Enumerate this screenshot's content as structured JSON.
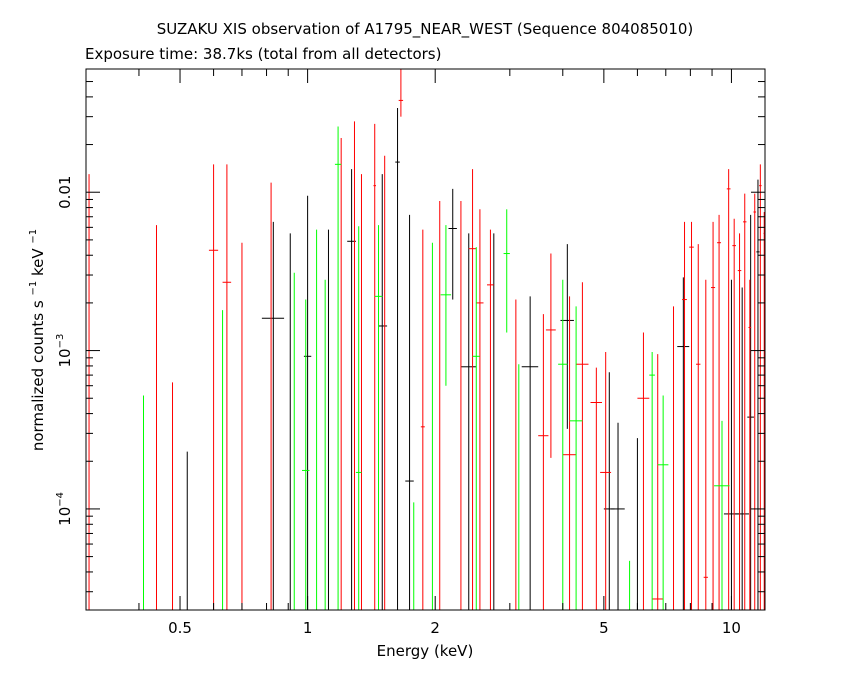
{
  "chart_data": {
    "type": "scatter",
    "title": "SUZAKU XIS observation of A1795_NEAR_WEST (Sequence 804085010)",
    "subtitle": "Exposure time: 38.7ks (total from all detectors)",
    "xlabel": "Energy (keV)",
    "ylabel": "normalized counts s",
    "ylabel_sup1": "−1",
    "ylabel_mid": " keV",
    "ylabel_sup2": "−1",
    "xscale": "log",
    "yscale": "log",
    "xlim": [
      0.3,
      12.0
    ],
    "ylim": [
      2.3e-05,
      0.06
    ],
    "x_ticks": [
      {
        "value": 0.5,
        "label": "0.5"
      },
      {
        "value": 1,
        "label": "1"
      },
      {
        "value": 2,
        "label": "2"
      },
      {
        "value": 5,
        "label": "5"
      },
      {
        "value": 10,
        "label": "10"
      }
    ],
    "y_ticks": [
      {
        "value": 0.0001,
        "base": "10",
        "exp": "−4"
      },
      {
        "value": 0.001,
        "base": "10",
        "exp": "−3"
      },
      {
        "value": 0.01,
        "label": "0.01"
      }
    ],
    "grid": false,
    "series": [
      {
        "color": "#000000",
        "points": [
          {
            "x": 0.52,
            "xlo": 0.518,
            "xhi": 0.522,
            "y": 2.3e-05,
            "ylo": 2.3e-05,
            "yhi": 0.00023
          },
          {
            "x": 0.83,
            "xlo": 0.78,
            "xhi": 0.88,
            "y": 0.0016,
            "ylo": 2.3e-05,
            "yhi": 0.0065
          },
          {
            "x": 0.91,
            "xlo": 0.908,
            "xhi": 0.912,
            "y": 2.3e-05,
            "ylo": 2.3e-05,
            "yhi": 0.0055
          },
          {
            "x": 1.0,
            "xlo": 0.98,
            "xhi": 1.02,
            "y": 0.00092,
            "ylo": 2.3e-05,
            "yhi": 0.0095
          },
          {
            "x": 1.12,
            "xlo": 1.118,
            "xhi": 1.122,
            "y": 2.3e-05,
            "ylo": 2.3e-05,
            "yhi": 0.0058
          },
          {
            "x": 1.27,
            "xlo": 1.24,
            "xhi": 1.3,
            "y": 0.0049,
            "ylo": 2.3e-05,
            "yhi": 0.014
          },
          {
            "x": 1.5,
            "xlo": 1.47,
            "xhi": 1.54,
            "y": 0.00143,
            "ylo": 2.3e-05,
            "yhi": 0.013
          },
          {
            "x": 1.63,
            "xlo": 1.61,
            "xhi": 1.65,
            "y": 0.0155,
            "ylo": 2.3e-05,
            "yhi": 0.034
          },
          {
            "x": 1.74,
            "xlo": 1.7,
            "xhi": 1.78,
            "y": 0.00015,
            "ylo": 2.3e-05,
            "yhi": 0.0072
          },
          {
            "x": 2.2,
            "xlo": 2.15,
            "xhi": 2.25,
            "y": 0.0059,
            "ylo": 0.0021,
            "yhi": 0.0105
          },
          {
            "x": 2.4,
            "xlo": 2.3,
            "xhi": 2.5,
            "y": 0.00079,
            "ylo": 2.3e-05,
            "yhi": 0.0055
          },
          {
            "x": 2.75,
            "xlo": 2.72,
            "xhi": 2.78,
            "y": 2.3e-05,
            "ylo": 2.3e-05,
            "yhi": 0.0055
          },
          {
            "x": 3.35,
            "xlo": 3.2,
            "xhi": 3.5,
            "y": 0.00079,
            "ylo": 2.3e-05,
            "yhi": 0.0022
          },
          {
            "x": 4.1,
            "xlo": 3.95,
            "xhi": 4.25,
            "y": 0.00155,
            "ylo": 0.00032,
            "yhi": 0.0047
          },
          {
            "x": 5.15,
            "xlo": 5.0,
            "xhi": 5.3,
            "y": 0.0001,
            "ylo": 2.3e-05,
            "yhi": 0.00073
          },
          {
            "x": 5.4,
            "xlo": 5.2,
            "xhi": 5.6,
            "y": 0.0001,
            "ylo": 2.3e-05,
            "yhi": 0.00035
          },
          {
            "x": 6.0,
            "xlo": 5.98,
            "xhi": 6.02,
            "y": 2.3e-05,
            "ylo": 2.3e-05,
            "yhi": 0.00028
          },
          {
            "x": 7.7,
            "xlo": 7.45,
            "xhi": 7.95,
            "y": 0.00106,
            "ylo": 2.3e-05,
            "yhi": 0.0029
          },
          {
            "x": 10.0,
            "xlo": 9.6,
            "xhi": 10.4,
            "y": 9.3e-05,
            "ylo": 2.3e-05,
            "yhi": 0.0028
          },
          {
            "x": 10.6,
            "xlo": 10.2,
            "xhi": 11.0,
            "y": 9.3e-05,
            "ylo": 2.3e-05,
            "yhi": 0.0025
          },
          {
            "x": 11.1,
            "xlo": 10.9,
            "xhi": 11.3,
            "y": 0.00038,
            "ylo": 2.3e-05,
            "yhi": 0.0072
          },
          {
            "x": 11.55,
            "xlo": 11.45,
            "xhi": 11.65,
            "y": 0.0042,
            "ylo": 2.3e-05,
            "yhi": 0.012
          }
        ]
      },
      {
        "color": "#ff0000",
        "points": [
          {
            "x": 0.305,
            "xlo": 0.304,
            "xhi": 0.306,
            "y": 2.3e-05,
            "ylo": 2.3e-05,
            "yhi": 0.013
          },
          {
            "x": 0.44,
            "xlo": 0.438,
            "xhi": 0.442,
            "y": 2.3e-05,
            "ylo": 2.3e-05,
            "yhi": 0.0062
          },
          {
            "x": 0.48,
            "xlo": 0.478,
            "xhi": 0.482,
            "y": 2.3e-05,
            "ylo": 2.3e-05,
            "yhi": 0.00063
          },
          {
            "x": 0.6,
            "xlo": 0.585,
            "xhi": 0.615,
            "y": 0.0043,
            "ylo": 2.3e-05,
            "yhi": 0.015
          },
          {
            "x": 0.645,
            "xlo": 0.63,
            "xhi": 0.66,
            "y": 0.0027,
            "ylo": 2.3e-05,
            "yhi": 0.015
          },
          {
            "x": 0.7,
            "xlo": 0.698,
            "xhi": 0.702,
            "y": 2.3e-05,
            "ylo": 2.3e-05,
            "yhi": 0.0048
          },
          {
            "x": 0.82,
            "xlo": 0.818,
            "xhi": 0.822,
            "y": 2.3e-05,
            "ylo": 2.3e-05,
            "yhi": 0.0115
          },
          {
            "x": 1.2,
            "xlo": 1.198,
            "xhi": 1.202,
            "y": 2.3e-05,
            "ylo": 2.3e-05,
            "yhi": 0.022
          },
          {
            "x": 1.29,
            "xlo": 1.288,
            "xhi": 1.292,
            "y": 2.3e-05,
            "ylo": 2.3e-05,
            "yhi": 0.028
          },
          {
            "x": 1.34,
            "xlo": 1.338,
            "xhi": 1.342,
            "y": 2.3e-05,
            "ylo": 2.3e-05,
            "yhi": 0.013
          },
          {
            "x": 1.44,
            "xlo": 1.43,
            "xhi": 1.45,
            "y": 0.011,
            "ylo": 2.3e-05,
            "yhi": 0.027
          },
          {
            "x": 1.52,
            "xlo": 1.518,
            "xhi": 1.522,
            "y": 2.3e-05,
            "ylo": 2.3e-05,
            "yhi": 0.017
          },
          {
            "x": 1.66,
            "xlo": 1.64,
            "xhi": 1.68,
            "y": 0.038,
            "ylo": 0.03,
            "yhi": 0.06
          },
          {
            "x": 1.87,
            "xlo": 1.85,
            "xhi": 1.89,
            "y": 0.00033,
            "ylo": 2.3e-05,
            "yhi": 0.0058
          },
          {
            "x": 2.05,
            "xlo": 2.048,
            "xhi": 2.052,
            "y": 2.3e-05,
            "ylo": 2.3e-05,
            "yhi": 0.0088
          },
          {
            "x": 2.3,
            "xlo": 2.298,
            "xhi": 2.302,
            "y": 2.3e-05,
            "ylo": 2.3e-05,
            "yhi": 0.0088
          },
          {
            "x": 2.45,
            "xlo": 2.4,
            "xhi": 2.5,
            "y": 0.0044,
            "ylo": 2.3e-05,
            "yhi": 0.014
          },
          {
            "x": 2.55,
            "xlo": 2.5,
            "xhi": 2.6,
            "y": 0.002,
            "ylo": 2.3e-05,
            "yhi": 0.0078
          },
          {
            "x": 2.7,
            "xlo": 2.65,
            "xhi": 2.75,
            "y": 0.0026,
            "ylo": 2.3e-05,
            "yhi": 0.0058
          },
          {
            "x": 3.1,
            "xlo": 3.098,
            "xhi": 3.102,
            "y": 2.3e-05,
            "ylo": 2.3e-05,
            "yhi": 0.0021
          },
          {
            "x": 3.6,
            "xlo": 3.5,
            "xhi": 3.7,
            "y": 0.00029,
            "ylo": 2.3e-05,
            "yhi": 0.0017
          },
          {
            "x": 3.75,
            "xlo": 3.65,
            "xhi": 3.85,
            "y": 0.00135,
            "ylo": 0.00021,
            "yhi": 0.0041
          },
          {
            "x": 4.15,
            "xlo": 4.0,
            "xhi": 4.3,
            "y": 0.00022,
            "ylo": 2.3e-05,
            "yhi": 0.0022
          },
          {
            "x": 4.45,
            "xlo": 4.3,
            "xhi": 4.6,
            "y": 0.00082,
            "ylo": 2.3e-05,
            "yhi": 0.0027
          },
          {
            "x": 4.8,
            "xlo": 4.65,
            "xhi": 4.95,
            "y": 0.00047,
            "ylo": 2.3e-05,
            "yhi": 0.00078
          },
          {
            "x": 5.05,
            "xlo": 4.9,
            "xhi": 5.2,
            "y": 0.00017,
            "ylo": 2.3e-05,
            "yhi": 0.00098
          },
          {
            "x": 6.2,
            "xlo": 6.0,
            "xhi": 6.4,
            "y": 0.0005,
            "ylo": 2.3e-05,
            "yhi": 0.0013
          },
          {
            "x": 6.7,
            "xlo": 6.5,
            "xhi": 6.9,
            "y": 2.7e-05,
            "ylo": 2.3e-05,
            "yhi": 0.00095
          },
          {
            "x": 7.3,
            "xlo": 7.298,
            "xhi": 7.302,
            "y": 2.3e-05,
            "ylo": 2.3e-05,
            "yhi": 0.0019
          },
          {
            "x": 7.75,
            "xlo": 7.65,
            "xhi": 7.85,
            "y": 0.0021,
            "ylo": 2.3e-05,
            "yhi": 0.0065
          },
          {
            "x": 8.05,
            "xlo": 7.95,
            "xhi": 8.15,
            "y": 0.0045,
            "ylo": 2.3e-05,
            "yhi": 0.0065
          },
          {
            "x": 8.35,
            "xlo": 8.25,
            "xhi": 8.45,
            "y": 0.00082,
            "ylo": 2.3e-05,
            "yhi": 0.0047
          },
          {
            "x": 8.7,
            "xlo": 8.6,
            "xhi": 8.8,
            "y": 3.7e-05,
            "ylo": 2.3e-05,
            "yhi": 0.0028
          },
          {
            "x": 9.05,
            "xlo": 8.95,
            "xhi": 9.15,
            "y": 0.0025,
            "ylo": 2.3e-05,
            "yhi": 0.0065
          },
          {
            "x": 9.35,
            "xlo": 9.25,
            "xhi": 9.45,
            "y": 0.0048,
            "ylo": 2.3e-05,
            "yhi": 0.0072
          },
          {
            "x": 9.85,
            "xlo": 9.75,
            "xhi": 9.95,
            "y": 0.0105,
            "ylo": 2.3e-05,
            "yhi": 0.014
          },
          {
            "x": 10.15,
            "xlo": 10.05,
            "xhi": 10.25,
            "y": 0.0046,
            "ylo": 2.3e-05,
            "yhi": 0.0068
          },
          {
            "x": 10.45,
            "xlo": 10.35,
            "xhi": 10.55,
            "y": 0.0032,
            "ylo": 2.3e-05,
            "yhi": 0.0055
          },
          {
            "x": 10.75,
            "xlo": 10.65,
            "xhi": 10.85,
            "y": 0.0065,
            "ylo": 2.3e-05,
            "yhi": 0.0098
          },
          {
            "x": 11.05,
            "xlo": 10.97,
            "xhi": 11.13,
            "y": 0.0014,
            "ylo": 2.3e-05,
            "yhi": 0.0028
          },
          {
            "x": 11.35,
            "xlo": 11.27,
            "xhi": 11.43,
            "y": 0.0075,
            "ylo": 2.3e-05,
            "yhi": 0.0098
          },
          {
            "x": 11.7,
            "xlo": 11.62,
            "xhi": 11.78,
            "y": 0.011,
            "ylo": 2.3e-05,
            "yhi": 0.015
          },
          {
            "x": 11.95,
            "xlo": 11.9,
            "xhi": 12.0,
            "y": 0.0055,
            "ylo": 2.3e-05,
            "yhi": 0.0075
          }
        ]
      },
      {
        "color": "#00ff00",
        "points": [
          {
            "x": 0.41,
            "xlo": 0.408,
            "xhi": 0.412,
            "y": 2.3e-05,
            "ylo": 2.3e-05,
            "yhi": 0.00052
          },
          {
            "x": 0.63,
            "xlo": 0.628,
            "xhi": 0.632,
            "y": 2.3e-05,
            "ylo": 2.3e-05,
            "yhi": 0.0018
          },
          {
            "x": 0.93,
            "xlo": 0.928,
            "xhi": 0.932,
            "y": 2.3e-05,
            "ylo": 2.3e-05,
            "yhi": 0.0031
          },
          {
            "x": 0.99,
            "xlo": 0.97,
            "xhi": 1.01,
            "y": 0.000175,
            "ylo": 2.3e-05,
            "yhi": 0.0021
          },
          {
            "x": 1.05,
            "xlo": 1.048,
            "xhi": 1.052,
            "y": 2.3e-05,
            "ylo": 2.3e-05,
            "yhi": 0.0058
          },
          {
            "x": 1.1,
            "xlo": 1.098,
            "xhi": 1.102,
            "y": 2.3e-05,
            "ylo": 2.3e-05,
            "yhi": 0.0028
          },
          {
            "x": 1.18,
            "xlo": 1.16,
            "xhi": 1.2,
            "y": 0.015,
            "ylo": 2.3e-05,
            "yhi": 0.026
          },
          {
            "x": 1.32,
            "xlo": 1.3,
            "xhi": 1.34,
            "y": 0.00017,
            "ylo": 2.3e-05,
            "yhi": 0.0061
          },
          {
            "x": 1.47,
            "xlo": 1.44,
            "xhi": 1.5,
            "y": 0.0022,
            "ylo": 2.3e-05,
            "yhi": 0.0062
          },
          {
            "x": 1.78,
            "xlo": 1.776,
            "xhi": 1.784,
            "y": 2.3e-05,
            "ylo": 2.3e-05,
            "yhi": 0.00011
          },
          {
            "x": 1.97,
            "xlo": 1.965,
            "xhi": 1.975,
            "y": 2.3e-05,
            "ylo": 2.3e-05,
            "yhi": 0.0048
          },
          {
            "x": 2.12,
            "xlo": 2.06,
            "xhi": 2.18,
            "y": 0.00225,
            "ylo": 0.0006,
            "yhi": 0.0062
          },
          {
            "x": 2.5,
            "xlo": 2.45,
            "xhi": 2.55,
            "y": 0.00092,
            "ylo": 2.3e-05,
            "yhi": 0.0045
          },
          {
            "x": 2.95,
            "xlo": 2.9,
            "xhi": 3.0,
            "y": 0.0041,
            "ylo": 0.0013,
            "yhi": 0.0078
          },
          {
            "x": 3.15,
            "xlo": 3.148,
            "xhi": 3.152,
            "y": 2.3e-05,
            "ylo": 2.3e-05,
            "yhi": 0.00082
          },
          {
            "x": 4.0,
            "xlo": 3.9,
            "xhi": 4.1,
            "y": 0.00082,
            "ylo": 2.3e-05,
            "yhi": 0.0028
          },
          {
            "x": 4.3,
            "xlo": 4.15,
            "xhi": 4.45,
            "y": 0.00036,
            "ylo": 2.3e-05,
            "yhi": 0.0019
          },
          {
            "x": 5.75,
            "xlo": 5.748,
            "xhi": 5.752,
            "y": 2.3e-05,
            "ylo": 2.3e-05,
            "yhi": 4.7e-05
          },
          {
            "x": 6.5,
            "xlo": 6.4,
            "xhi": 6.6,
            "y": 0.0007,
            "ylo": 2.3e-05,
            "yhi": 0.00098
          },
          {
            "x": 6.9,
            "xlo": 6.7,
            "xhi": 7.1,
            "y": 0.00019,
            "ylo": 2.3e-05,
            "yhi": 0.00052
          },
          {
            "x": 9.5,
            "xlo": 9.1,
            "xhi": 9.9,
            "y": 0.00014,
            "ylo": 2.3e-05,
            "yhi": 0.00036
          }
        ]
      }
    ]
  }
}
